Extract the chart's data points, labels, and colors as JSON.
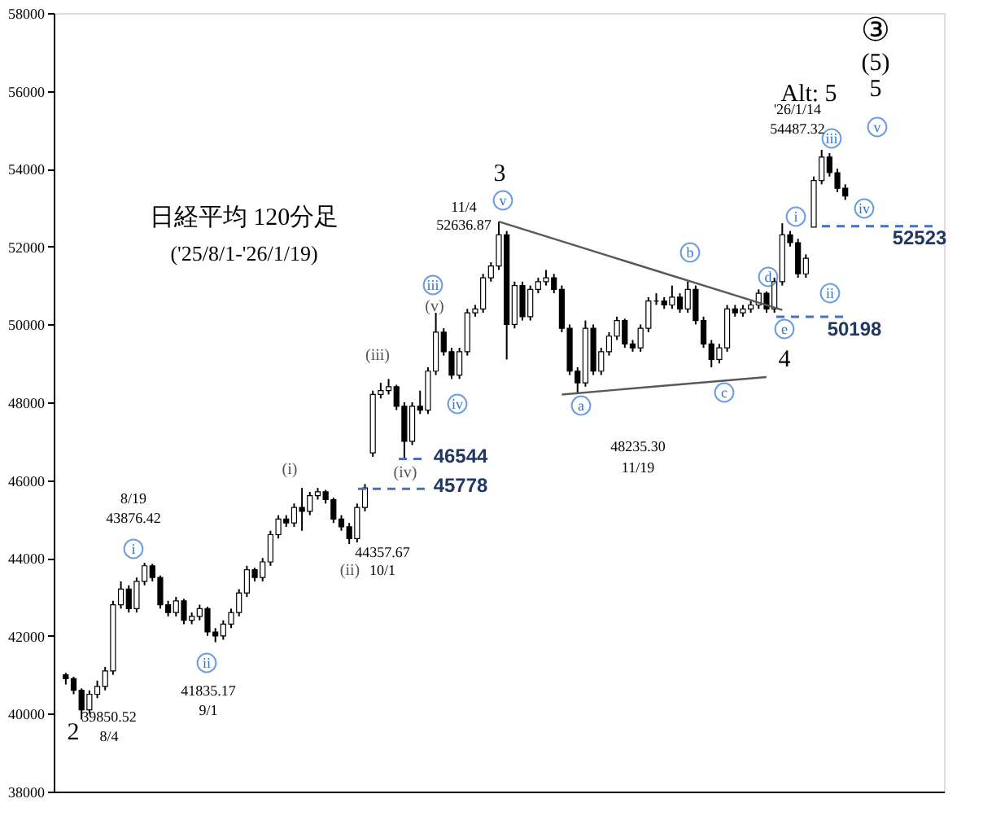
{
  "chart_data": {
    "type": "candlestick",
    "title": "日経平均 120分足",
    "subtitle": "('25/8/1-'26/1/19)",
    "categories": [
      null,
      null,
      null,
      null,
      null,
      null,
      null,
      null,
      null,
      null,
      null,
      null,
      null,
      null,
      null,
      null,
      null,
      null,
      null,
      null,
      null,
      null,
      null,
      null,
      null,
      null,
      null,
      null,
      null,
      null,
      null,
      null,
      null,
      null,
      null,
      null,
      null,
      null,
      null,
      null,
      null,
      null,
      null,
      null,
      null,
      null,
      null,
      null,
      null,
      null,
      null,
      null,
      null,
      null,
      null,
      null,
      null,
      null,
      null,
      null,
      null,
      null,
      null,
      null,
      null,
      null,
      null,
      null,
      null,
      null,
      null,
      null,
      null,
      null,
      null,
      null,
      null,
      null,
      null,
      null,
      null,
      null,
      null,
      null,
      null,
      null,
      null,
      null,
      null,
      null,
      null,
      null,
      null,
      null,
      null,
      null,
      null,
      null,
      null,
      null
    ],
    "ohlc": [
      [
        41000,
        41050,
        40750,
        40900
      ],
      [
        40900,
        40950,
        40500,
        40600
      ],
      [
        40600,
        40650,
        39850,
        40100
      ],
      [
        40100,
        40600,
        40000,
        40500
      ],
      [
        40500,
        40850,
        40400,
        40700
      ],
      [
        40700,
        41200,
        40600,
        41100
      ],
      [
        41100,
        42900,
        41000,
        42800
      ],
      [
        42800,
        43400,
        42700,
        43200
      ],
      [
        43200,
        43300,
        42600,
        42700
      ],
      [
        42700,
        43500,
        42600,
        43400
      ],
      [
        43400,
        43877,
        43300,
        43800
      ],
      [
        43800,
        43850,
        43400,
        43500
      ],
      [
        43500,
        43550,
        42700,
        42800
      ],
      [
        42800,
        42900,
        42500,
        42600
      ],
      [
        42600,
        43000,
        42500,
        42900
      ],
      [
        42900,
        42950,
        42300,
        42400
      ],
      [
        42400,
        42600,
        42300,
        42500
      ],
      [
        42500,
        42800,
        42400,
        42700
      ],
      [
        42700,
        42750,
        42000,
        42100
      ],
      [
        42100,
        42200,
        41835,
        42000
      ],
      [
        42000,
        42400,
        41900,
        42300
      ],
      [
        42300,
        42700,
        42200,
        42600
      ],
      [
        42600,
        43200,
        42500,
        43100
      ],
      [
        43100,
        43800,
        43000,
        43700
      ],
      [
        43700,
        43750,
        43400,
        43500
      ],
      [
        43500,
        44000,
        43400,
        43900
      ],
      [
        43900,
        44700,
        43800,
        44600
      ],
      [
        44600,
        45100,
        44500,
        45000
      ],
      [
        45000,
        45100,
        44800,
        44900
      ],
      [
        44900,
        45400,
        44800,
        45300
      ],
      [
        45300,
        45800,
        44700,
        45200
      ],
      [
        45200,
        45700,
        45100,
        45600
      ],
      [
        45600,
        45800,
        45500,
        45700
      ],
      [
        45700,
        45750,
        45400,
        45500
      ],
      [
        45500,
        45550,
        44900,
        45000
      ],
      [
        45000,
        45100,
        44700,
        44800
      ],
      [
        44800,
        44900,
        44358,
        44500
      ],
      [
        44500,
        45400,
        44400,
        45300
      ],
      [
        45300,
        45900,
        45200,
        45800
      ],
      [
        46700,
        48300,
        46600,
        48200
      ],
      [
        48200,
        48500,
        48100,
        48300
      ],
      [
        48300,
        48600,
        48200,
        48400
      ],
      [
        48400,
        48450,
        47800,
        47900
      ],
      [
        47900,
        48000,
        46544,
        47000
      ],
      [
        47000,
        48000,
        46900,
        47900
      ],
      [
        47900,
        48300,
        47700,
        47800
      ],
      [
        47800,
        48900,
        47700,
        48800
      ],
      [
        48800,
        50300,
        48700,
        49800
      ],
      [
        49800,
        49900,
        49200,
        49300
      ],
      [
        49300,
        49400,
        48600,
        48700
      ],
      [
        48700,
        49400,
        48600,
        49300
      ],
      [
        49300,
        50400,
        49200,
        50300
      ],
      [
        50300,
        50500,
        50200,
        50400
      ],
      [
        50400,
        51300,
        50300,
        51200
      ],
      [
        51200,
        51600,
        51100,
        51500
      ],
      [
        51500,
        52637,
        51400,
        52300
      ],
      [
        52300,
        52400,
        49100,
        50000
      ],
      [
        50000,
        51100,
        49900,
        51000
      ],
      [
        51000,
        51100,
        50100,
        50200
      ],
      [
        50200,
        51000,
        50100,
        50900
      ],
      [
        50900,
        51200,
        50800,
        51100
      ],
      [
        51100,
        51400,
        51000,
        51200
      ],
      [
        51200,
        51300,
        50800,
        50900
      ],
      [
        50900,
        51000,
        49800,
        49900
      ],
      [
        49900,
        50000,
        48700,
        48800
      ],
      [
        48800,
        48900,
        48235,
        48500
      ],
      [
        48500,
        50100,
        48400,
        49900
      ],
      [
        49900,
        50000,
        48700,
        48800
      ],
      [
        48800,
        49400,
        48700,
        49300
      ],
      [
        49300,
        49800,
        49200,
        49700
      ],
      [
        49700,
        50200,
        49600,
        50100
      ],
      [
        50100,
        50150,
        49400,
        49500
      ],
      [
        49500,
        49600,
        49300,
        49400
      ],
      [
        49400,
        50000,
        49300,
        49900
      ],
      [
        49900,
        50700,
        49800,
        50600
      ],
      [
        50600,
        50800,
        50500,
        50600
      ],
      [
        50600,
        50700,
        50400,
        50500
      ],
      [
        50500,
        51000,
        50400,
        50700
      ],
      [
        50700,
        50800,
        50300,
        50400
      ],
      [
        50400,
        51100,
        50300,
        50900
      ],
      [
        50900,
        51000,
        50000,
        50100
      ],
      [
        50100,
        50200,
        49400,
        49500
      ],
      [
        49500,
        49600,
        48900,
        49100
      ],
      [
        49100,
        49500,
        49000,
        49400
      ],
      [
        49400,
        50500,
        49300,
        50400
      ],
      [
        50400,
        50500,
        50200,
        50300
      ],
      [
        50300,
        50500,
        50200,
        50400
      ],
      [
        50400,
        50600,
        50300,
        50500
      ],
      [
        50500,
        50900,
        50400,
        50800
      ],
      [
        50800,
        50850,
        50300,
        50400
      ],
      [
        50400,
        51200,
        50300,
        51100
      ],
      [
        51100,
        52600,
        51000,
        52300
      ],
      [
        52300,
        52400,
        52000,
        52100
      ],
      [
        52100,
        52200,
        51200,
        51300
      ],
      [
        51300,
        51800,
        51200,
        51700
      ],
      [
        52500,
        53800,
        52500,
        53700
      ],
      [
        53700,
        54487,
        53600,
        54300
      ],
      [
        54300,
        54400,
        53800,
        53900
      ],
      [
        53900,
        54000,
        53400,
        53500
      ],
      [
        53500,
        53600,
        53200,
        53300
      ]
    ],
    "series": [
      {
        "type": "line",
        "color": "#595959",
        "values": [
          null,
          null,
          null,
          null,
          null,
          null,
          null,
          null,
          null,
          null,
          null,
          null,
          null,
          null,
          null,
          null,
          null,
          null,
          null,
          null,
          null,
          null,
          null,
          null,
          null,
          null,
          null,
          null,
          null,
          null,
          null,
          null,
          null,
          null,
          null,
          null,
          null,
          null,
          null,
          null,
          null,
          null,
          null,
          null,
          null,
          null,
          null,
          null,
          null,
          null,
          null,
          null,
          null,
          null,
          null,
          52640,
          null,
          null,
          null,
          null,
          null,
          null,
          null,
          null,
          null,
          null,
          null,
          null,
          null,
          null,
          null,
          null,
          null,
          null,
          null,
          null,
          null,
          null,
          null,
          null,
          null,
          null,
          null,
          null,
          null,
          null,
          null,
          null,
          null,
          null,
          null,
          50370,
          null,
          null,
          null,
          null,
          null,
          null,
          null,
          null
        ]
      },
      {
        "type": "line",
        "color": "#595959",
        "values": [
          null,
          null,
          null,
          null,
          null,
          null,
          null,
          null,
          null,
          null,
          null,
          null,
          null,
          null,
          null,
          null,
          null,
          null,
          null,
          null,
          null,
          null,
          null,
          null,
          null,
          null,
          null,
          null,
          null,
          null,
          null,
          null,
          null,
          null,
          null,
          null,
          null,
          null,
          null,
          null,
          null,
          null,
          null,
          null,
          null,
          null,
          null,
          null,
          null,
          null,
          null,
          null,
          null,
          null,
          null,
          null,
          null,
          null,
          null,
          null,
          null,
          null,
          null,
          48200,
          null,
          null,
          null,
          null,
          null,
          null,
          null,
          null,
          null,
          null,
          null,
          null,
          null,
          null,
          null,
          null,
          null,
          null,
          null,
          null,
          null,
          null,
          null,
          null,
          null,
          48650,
          null,
          null,
          null,
          null,
          null,
          null,
          null,
          null,
          null,
          null
        ]
      }
    ],
    "ylim": [
      38000,
      58000
    ],
    "yticks": [
      38000,
      40000,
      42000,
      44000,
      46000,
      48000,
      50000,
      52000,
      54000,
      56000,
      58000
    ],
    "tick_labels": "y",
    "grid": false,
    "ref_lines": [
      {
        "axis": "y",
        "value": 46544,
        "label": "46544",
        "color": "#4472c4",
        "line_style": "dashed"
      },
      {
        "axis": "y",
        "value": 45778,
        "label": "45778",
        "color": "#4472c4",
        "line_style": "dashed"
      },
      {
        "axis": "y",
        "value": 52523,
        "label": "52523",
        "color": "#4472c4",
        "line_style": "dashed"
      },
      {
        "axis": "y",
        "value": 50198,
        "label": "50198",
        "color": "#4472c4",
        "line_style": "dashed"
      }
    ],
    "annotations": [
      "2",
      "39850.52",
      "8/4",
      "8/19",
      "43876.42",
      "i",
      "ii",
      "41835.17",
      "9/1",
      "(i)",
      "(ii)",
      "44357.67",
      "10/1",
      "(iii)",
      "(iv)",
      "iii",
      "(v)",
      "iv",
      "3",
      "v",
      "11/4",
      "52636.87",
      "a",
      "48235.30",
      "11/19",
      "b",
      "c",
      "d",
      "e",
      "4",
      "i",
      "ii",
      "iii",
      "iv",
      "v",
      "'26/1/14",
      "54487.32",
      "Alt:  5",
      "③",
      "(5)",
      "5"
    ]
  }
}
